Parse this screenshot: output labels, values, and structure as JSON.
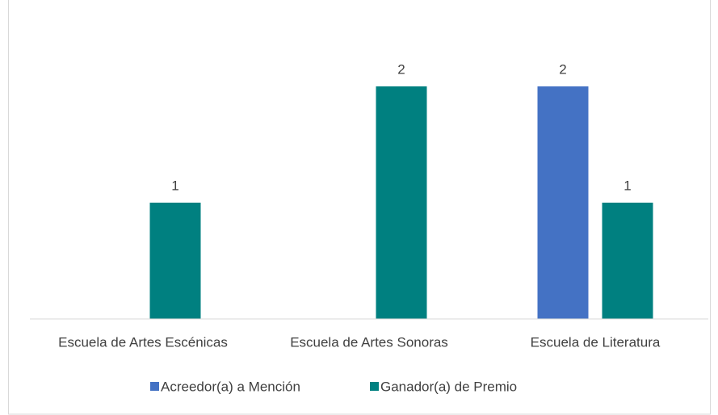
{
  "chart_data": {
    "type": "bar",
    "categories": [
      "Escuela de Artes Escénicas",
      "Escuela de Artes Sonoras",
      "Escuela de Literatura"
    ],
    "series": [
      {
        "name": "Acreedor(a) a Mención",
        "color": "#4472c4",
        "values": [
          null,
          null,
          2
        ]
      },
      {
        "name": "Ganador(a) de Premio",
        "color": "#008080",
        "values": [
          1,
          2,
          1
        ]
      }
    ],
    "ylim": [
      0,
      2.5
    ],
    "grid": false,
    "legend": "bottom"
  }
}
